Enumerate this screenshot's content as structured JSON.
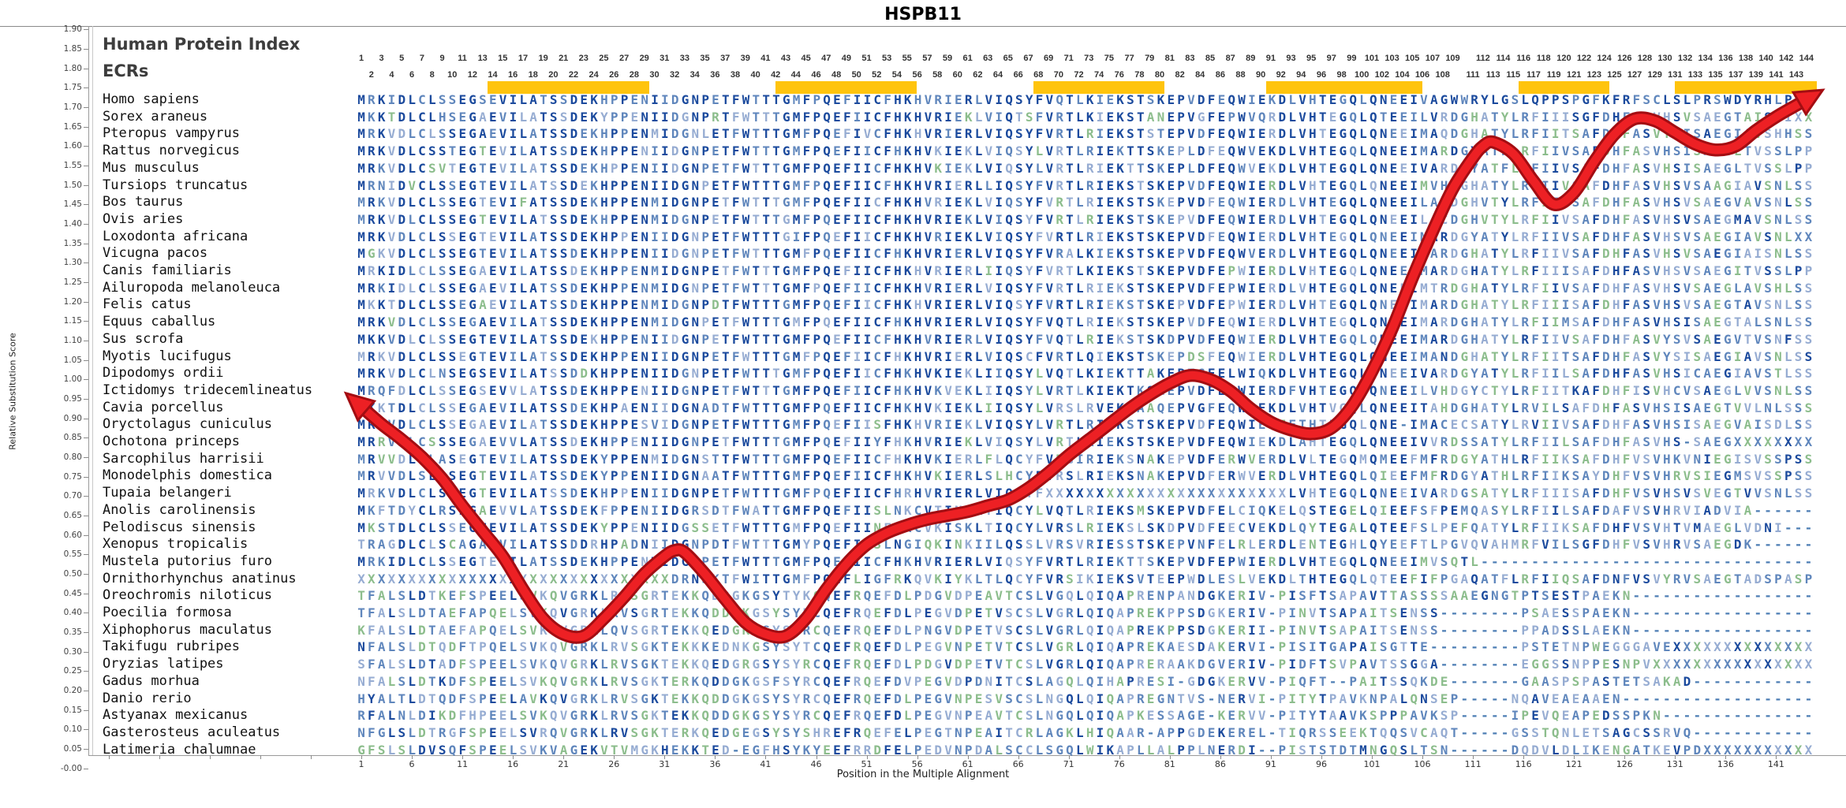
{
  "title": "HSPB11",
  "panel": {
    "index_label": "Human Protein Index",
    "ecrs_label": "ECRs"
  },
  "y_axis": {
    "label": "Relative Substitution Score",
    "min": 0.0,
    "max": 1.9,
    "step": 0.05
  },
  "x_axis": {
    "label": "Position in the Multiple Alignment",
    "tick_start": 1,
    "tick_step": 5,
    "tick_end": 141,
    "positions": 144,
    "number_row_switch": 110
  },
  "colors": {
    "ecr_bar": "#FFC40D",
    "curve_inner": "#ED2024",
    "curve_outer": "#A30D12",
    "residue_dark": "#1B4A9D",
    "residue_medium": "#5F86BC",
    "residue_light": "#96ACD2",
    "residue_green": "#8CBD8C",
    "residue_gap": "#4F7FB5"
  },
  "ecr_regions": [
    {
      "start": 14,
      "end": 29
    },
    {
      "start": 42.5,
      "end": 55.5
    },
    {
      "start": 68,
      "end": 80
    },
    {
      "start": 91,
      "end": 105.5
    },
    {
      "start": 116,
      "end": 124
    },
    {
      "start": 131.5,
      "end": 144.5
    }
  ],
  "species": [
    {
      "name": "Homo sapiens",
      "seq": "MRKIDLCLSSEGSEVILATSSDEKHPPENIIDGNPETFWTTTGMFPQEFIICFHKHVRIERLVIQSYFVQTLKIEKSTSKEPVDFEQWIEKDLVHTEGQLQNEEIVAGWWRYLGSLQPPSPGFKFRFSCLSLPRSWDYRHLPPH"
    },
    {
      "name": "Sorex araneus",
      "seq": "MKKTDLCLHSEGAEVILATSSDEKYPPENIIDGNPRTFWTTTGMFPQEFIICFHKHVRIEKLVIQTSFVRTLKIEKSTANEPVGFEPWVQRDLVHTEGQLQTEEILVRDGHATYLRFIIISGFDHFAAVHSVSAEGTAISNIXX"
    },
    {
      "name": "Pteropus vampyrus",
      "seq": "MRKVDLCLSSEGAEVILATSSDEKHPPENMIDGNLETFWTTTGMFPQEFIVCFHKHVRIERLVIQSYFVRTLRIEKSTSTEPVDFEQWIERDLVHTEGQLQNEEIMAQDGHATYLRFIITSAFDHFASVYSISAEGIAVSHHSS"
    },
    {
      "name": "Rattus norvegicus",
      "seq": "MRKVDLCSSTEGTEVILATSSDEKHPPENIIDGNPETFWTTTGMFPQEFIICFHKHVKIEKLVIQSYLVRTLRIEKTTSKEPLDFEQWVEKDLVHTEGQLQNEEIMARDGYATFLRFIIVSAFDHFASVHSISAEGLTVSSLPP"
    },
    {
      "name": "Mus musculus",
      "seq": "MRKVDLCSVTEGTEVILATSSDEKHPPENIIDGNPETFWTTTGMFPQEFIICFHKHVKIEKLVIQSYLVRTLRIEKTTSKEPLDFEQWVEKDLVHTEGQLQNEEIVARDGYATFLRFIIVSAFDHFASVHSISAEGLTVSSLPP"
    },
    {
      "name": "Tursiops truncatus",
      "seq": "MRNIDVCLSSEGTEVILATSSDEKHPPENIIDGNPETFWTTTGMFPQEFIICFHKHVRIERLLIQSYFVRTLRIEKSTSKEPVDFEQWIERDLVHTEGQLQNEEIMVHDGHATYLRFIIVSAFDHFASVHSVSAAGIAVSNLSS"
    },
    {
      "name": "Bos taurus",
      "seq": "MRKVDLCLSSEGTEVIFATSSDEKHPPENMIDGNPETFWTTTGMFPQEFIICFHKHVRIEKLVIQSYFVRTLRIEKSTSKEPVDFEQWIERDLVHTEGQLQNEEILARDGHVTYLRFIIVSAFDHFASVHSVSAEGVAVSNLSS"
    },
    {
      "name": "Ovis aries",
      "seq": "MRKVDLCLSSEGTEVILATSSDEKHPPENMIDGNPETFWTTTGMFPQEFIICFHKHVRIEKLVIQSYFVRTLRIEKSTSKEPVDFEQWIERDLVHTEGQLQNEEILACDGHVTYLRFIIVSAFDHFASVHSVSAEGMAVSNLSS"
    },
    {
      "name": "Loxodonta africana",
      "seq": "MRKVDLCLSSEGTEVILATSSDEKHPPENIIDGNPETFWTTTGIFPQEFIICFHKHVRIEKLVIQSYFVRTLRIEKSTSKEPVDFEQWIERDLVHTEGQLQNEEIMARDGYATYLRFIIVSAFDHFASVHSVSAEGIAVSNLXX"
    },
    {
      "name": "Vicugna pacos",
      "seq": "MGKVDLCLSSEGTEVILATSSDEKHPPENIIDGNPETFWTTTGMFPQEFIICFHKHVRIERLVIQSYFVRALKIEKSTSKEPVDFEQWVERDLVHTEGQLQNEEIVARDGHATYLRFIIVSAFDHFASVHSVSAEGIAISNLSS"
    },
    {
      "name": "Canis familiaris",
      "seq": "MRKIDLCLSSEGAEVILATSSDEKHPPENMIDGNPETFWTTTGMFPQEFIICFHKHVRIERLIIQSYFVRTLKIEKSTSKEPVDFEPWIERDLVHTEGQLQNEEIMARDGHATYLRFIIISAFDHFASVHSVSAEGITVSSLPP"
    },
    {
      "name": "Ailuropoda melanoleuca",
      "seq": "MRKIDLCLSSEGAEVILATSSDEKHPPENMIDGNPETFWTTTGMFPQEFIICFHKHVRIERLVIQSYFVRTLRIEKSTSKEPVDFEPWIERDLVHTEGQLQNEEIMTRDGHATYLRFIIVSAFDHFASVHSVSAEGLAVSHLSS"
    },
    {
      "name": "Felis catus",
      "seq": "MKKTDLCLSSEGAEVILATSSDEKHPPENMIDGNPDTFWTTTGMFPQEFIICFHKHVRIERLVIQSYFVRTLRIEKSTSKEPVDFEPWIERDLVHTEGQLQNEEIMARDGHATYLRFIIISAFDHFASVHSVSAEGTAVSNLSS"
    },
    {
      "name": "Equus caballus",
      "seq": "MRKVDLCLSSEGAEVILATSSDEKHPPENMIDGNPETFWTTTGMFPQEFIICFHKHVRIERLVIQSYFVQTLRIEKSTSKEPVDFEQWIERDLVHTEGQLQNEEIMARDGHATYLRFIIMSAFDHFASVHSISAEGTALSNLSS"
    },
    {
      "name": "Sus scrofa",
      "seq": "MKKVDLCLSSEGTEVILATSSDEKHPPENIIDGNPETFWTTTGMFPQEFIICFHKHVRIERLVIQSYFVQTLRIEKSTSKDPVDFEQWIERDLVHTEGQLQNEEIMARDGHATYLRFIIVSAFDHFASVYSVSAEGVTVSNFSS"
    },
    {
      "name": "Myotis lucifugus",
      "seq": "MRKVDLCLSSEGTEVILATSSDEKHPPENIIDGNPETFWTTTGMFPQEFIICFHKHVRIERLVIQSCFVRTLQIEKSTSKEPDSFEQWIERDLVHTEGQLQNEEIMANDGHATYLRFIITSAFDHFASVYSISAEGIAVSNLSS"
    },
    {
      "name": "Dipodomys ordii",
      "seq": "MRKVDLCLNSEGSEVILATSSDDKHPPENIIDGNPETFWTTTGMFPQEFIICFHKHVKIEKLIIQSYLVQTLKIEKTTAKEPTGFELWIQKDLVHTEGQLQNEEIVARDGYATYLRFIILSAFDHFASVHSICAEGIAVSTLSS"
    },
    {
      "name": "Ictidomys tridecemlineatus",
      "seq": "MRQFDLCLSSEGSEVVLATSSDEKHPPENIIDGNPETFWTTTGMFPQEFIICFHKHVKVEKLIIQSYLVRTLKIEKTKSKEPVDFERWIERDFVHTEGQLQNEEILVHDGYCTYLRFIITKAFDHFISVHCVSAEGLVVSNLSS"
    },
    {
      "name": "Cavia porcellus",
      "seq": "MKKTDLCLSSEGAEVILATSSDEKHPAENIIDGNADTFWTTTGMFPQEFIICFHKHVKIEKLIIQSYLVRSLRVEKSAAQEPVGFEQWIEKDLVHTVGQLQNEEITAHDGHATYLRVILSAFDHFASVHSISAEGTVVLNLSSS"
    },
    {
      "name": "Oryctolagus cuniculus",
      "seq": "MRKVDLCLSSEGAEVILATSSDEKHPPESVIDGNPETFWTTTGMFPQEFIISFHKHVRIEKLVIQSYLVRTLRIEKSTSKEPVDFEQWIEREFTHTEGQLQNE-IMACECSATYLRVIIVSAFDHFASVHSISAEGVAISDLSS"
    },
    {
      "name": "Ochotona princeps",
      "seq": "MRRVDLCSSSEGAEVVLATSSDEKHPPENIIDGNPETFWTTTGMFPQEFIIYFHKHVRIEKLVIQSYLVRTLRIEKSTSKEPVDFEQWIEKDLAHTEGQLQNEEIVVRDSSATYLRFIILSAFDHFASVHS-SAEGXXXXXXXX"
    },
    {
      "name": "Sarcophilus harrisii",
      "seq": "MRVVDLCLASEGTEVILATSSDEKYPPENMIDGNSTTFWTTTGMFPQEFIICFHKHVKIERLFLQCYFVRGIRIEKSNAKEPVDFERWVERDLVLTEGQMQMEEFMFRDGYATHLRFIIKSAFDHFVSVHKVNIEGISVSSPSS"
    },
    {
      "name": "Monodelphis domestica",
      "seq": "MRVVDLSLSSEGTEVILATSSDEKYPPENIIDGNAATFWTTTGMFPQEFIICFHKHVKIERLSLHCYFVRSLRIEKSNAKEPVDFERWVERDLVHTEGQLQIEEFMFRDGYATHLRFIIKSAYDHFVSVHRVSIEGMSVSSPSS"
    },
    {
      "name": "Tupaia belangeri",
      "seq": "MRKVDLCLSSEGTEVILATSSDEKHPPENIIDGNPETFWTTTGMFPQEFIICFHRHVRIERLVIQSYFXXXXXXXXXXXXXXXXXXXXXXXXLVHTEGQLQNEEIVARDGSATYLRFIIISAFDHFVSVHSVSVEGTVVSNLSS"
    },
    {
      "name": "Anolis carolinensis",
      "seq": "MKFTDYCLRSEGAEVVLATSSDEKFPPENIIDGRSDTFWATTGMFPQEFIISLNKCVTINKLTIQCYLVQTLRIEKSMSKEPVDFELCIQKELQSTEGELQIEEFSFPEMQASYLRFIILSAFDAFVSVHRVIADVIA------"
    },
    {
      "name": "Pelodiscus sinensis",
      "seq": "MKSTDLCLSSEGTEVILATSSDEKYPPENIIDGSSETFWTTTGMFPQEFIINFHKCVKISKLTIQCYLVRSLRIEKSLSKDPVDFEECVEKDLQYTEGALQTEEFSLPEFQATYLRFIIKSAFDHFVSVHTVMAEGLVDNI---"
    },
    {
      "name": "Xenopus tropicalis",
      "seq": "TRAGDLCLSCAGARVILATSSDDRHPADNIIDGNPDTFWTTTGMYPQEFIISLNGIQKINKIILQSSLVRSVRIESSTSKEPVNFELRLERDLENTEGHLQYEEFTLPGVQVAHMRFVILSGFDHFVSVHRVSAEGDK------"
    },
    {
      "name": "Mustela putorius furo",
      "seq": "MRKIDLCLSSEGTEVILATSSDEKHPPENMIDGNPETFWTTTGMFPQEFIICFHKHVRIERLVIQSYFVRTLRIEKTTSKEPVDFEPWIERDLVHTEGQLQNEEIMVSQTL---------------------------------"
    },
    {
      "name": "Ornithorhynchus anatinus",
      "seq": "XXXXXXXXXXXXXXXXXXXXXXXXXXXXXXXDRNSKTFWITTGMFPQEFLIGFRKQVKIYKLTLQCYFVRSIKIEKSVTEEPWDLESLVEKDLTHTEGQLQTEEFIFPGAQATFLRFIIQSAFDNFVSVYRVSAEGTADSPASP"
    },
    {
      "name": "Oreochromis niloticus",
      "seq": "TFALSLDTKEFSPEELSVKQVGRKLRVSGRTEKKQDDGKGSYTYKCQEFRQEFDLPDGVDPEAVTCSLVGQLQIQAPRENPANDGKERIV-PISFTSAPAVTTASSSSAAEGNGTPTSESTPAEKN------------------"
    },
    {
      "name": "Poecilia formosa",
      "seq": "TFALSLDTAEFAPQELSVKQVGRKLRVSGRTEKKQDDGKGSYSYRCQEFRQEFDLPEGVDPETVSCSLVGRLQIQAPREKPPSDGKERIV-PINVTSAPAITSENSS--------PSAESSPAEKN------------------"
    },
    {
      "name": "Xiphophorus maculatus",
      "seq": "KFALSLDTAEFAPQELSVKQVGRKLQVSGRTEKKQEDGKGSYSYRCQEFRQEFDLPNGVDPETVSCSLVGRLQIQAPREKPPSDGKERII-PINVTSAPAITSENSS--------PPADSSLAEKN------------------"
    },
    {
      "name": "Takifugu rubripes",
      "seq": "NFALSLDTQDFTPQELSVKQVGRKLRVSGKTEKKKEDNKGSYSYTCQEFRQEFDLPEGVNPETVTCSLVGRLQIQAPREKAESDAKERVI-PISITGAPAISGTTE---------PSTETNPWEGGGAVEXXXXXXXXXXXXXX"
    },
    {
      "name": "Oryzias latipes",
      "seq": "SFALSLDTADFSPEELSVKQVGRKLRVSGKTEKKQEDGRGSYSYRCQEFRQEFDLPDGVDPETVTCSLVGRLQIQAPRERAAKDGVERIV-PIDFTSVPAVTSSGGA--------EGGSSNPPESNPVXXXXXXXXXXXXXXXX"
    },
    {
      "name": "Gadus morhua",
      "seq": "NFALSLDTKDFSPEELSVKQVGRKLRVSGKTERKQDDGKGSFSYRCQEFRQEFDVPEGVDPDNITCSLAGQLQIHAPRESI-GDGKERVV-PIQFT--PAITSSQKDE-------GAASPSPASTETSAKAD------------"
    },
    {
      "name": "Danio rerio",
      "seq": "HYALTLDTQDFSPEELAVKQVGRKLRVSGKTEKKQDDGKGSYSYRCQEFRQEFDLPEGVNPESVSCSLNGQLQIQAPREGNTVS-NERVI-PITYTPAVKNPALQNSEP-----NQAVEAEAAEN-------------------"
    },
    {
      "name": "Astyanax mexicanus",
      "seq": "RFALNLDIKDFHPEELSVKQVGRKLRVSGKTEKKQDDGKGSYSYRCQEFRQEFDLPEGVNPEAVTCSLNGQLQIQAPKESSAGE-KERVV-PITYTAAVKSPPPAVKSP-----IPEVQEAPEDSSPKN---------------"
    },
    {
      "name": "Gasterosteus aculeatus",
      "seq": "NFGLSLDTRGFSPEELSVRQVGRKLRVSGKTERKQEDGEGSYSYSHREFRQEFELPEGTNPEAITCRLAGKLHIQAAR-APPGDEKEREL-TIQRSSEEKTQQSVCAQT-----GSSTQNLETSAGCSSRVQ------------"
    },
    {
      "name": "Latimeria chalumnae",
      "seq": "GFSLSLDVSQFSPEELSVKVAGEKVTVMGKHEKKTED-EGFHSYKYEEFRRDFELPEDVNPDALSCCLSGQLWIKAPLLALPPLNERDI--PISTSTDTMNGQSLTSN------DQDVLDLIKENGATKEVPDXXXXXXXXXXX"
    }
  ],
  "chart_data": {
    "type": "line",
    "title": "HSPB11",
    "xlabel": "Position in the Multiple Alignment",
    "ylabel": "Relative Substitution Score",
    "xlim": [
      1,
      144
    ],
    "ylim": [
      0.0,
      1.9
    ],
    "y_tick_step": 0.05,
    "x_ticks": [
      1,
      6,
      11,
      16,
      21,
      26,
      31,
      36,
      41,
      46,
      51,
      56,
      61,
      66,
      71,
      76,
      81,
      86,
      91,
      96,
      101,
      106,
      111,
      116,
      121,
      126,
      131,
      136,
      141
    ],
    "legend": "none",
    "grid": false,
    "series": [
      {
        "name": "Relative Substitution Score",
        "points": [
          [
            1,
            0.93
          ],
          [
            3,
            0.885
          ],
          [
            5,
            0.845
          ],
          [
            7,
            0.8
          ],
          [
            9,
            0.745
          ],
          [
            11,
            0.675
          ],
          [
            13,
            0.61
          ],
          [
            15,
            0.545
          ],
          [
            17,
            0.46
          ],
          [
            19,
            0.385
          ],
          [
            21,
            0.345
          ],
          [
            23,
            0.34
          ],
          [
            25,
            0.385
          ],
          [
            27,
            0.44
          ],
          [
            29,
            0.5
          ],
          [
            31,
            0.545
          ],
          [
            32,
            0.56
          ],
          [
            33,
            0.555
          ],
          [
            35,
            0.5
          ],
          [
            37,
            0.435
          ],
          [
            39,
            0.375
          ],
          [
            41,
            0.345
          ],
          [
            43,
            0.34
          ],
          [
            45,
            0.385
          ],
          [
            47,
            0.46
          ],
          [
            49,
            0.525
          ],
          [
            51,
            0.575
          ],
          [
            53,
            0.605
          ],
          [
            55,
            0.625
          ],
          [
            57,
            0.64
          ],
          [
            59,
            0.65
          ],
          [
            61,
            0.66
          ],
          [
            63,
            0.675
          ],
          [
            65,
            0.69
          ],
          [
            67,
            0.72
          ],
          [
            69,
            0.76
          ],
          [
            71,
            0.805
          ],
          [
            73,
            0.845
          ],
          [
            75,
            0.885
          ],
          [
            77,
            0.925
          ],
          [
            79,
            0.96
          ],
          [
            81,
            0.99
          ],
          [
            83,
            1.01
          ],
          [
            85,
            1.0
          ],
          [
            87,
            0.97
          ],
          [
            89,
            0.925
          ],
          [
            91,
            0.89
          ],
          [
            93,
            0.87
          ],
          [
            95,
            0.86
          ],
          [
            97,
            0.875
          ],
          [
            99,
            0.93
          ],
          [
            101,
            1.02
          ],
          [
            103,
            1.13
          ],
          [
            105,
            1.26
          ],
          [
            107,
            1.38
          ],
          [
            109,
            1.49
          ],
          [
            111,
            1.57
          ],
          [
            112,
            1.6
          ],
          [
            113,
            1.61
          ],
          [
            115,
            1.58
          ],
          [
            117,
            1.51
          ],
          [
            119,
            1.45
          ],
          [
            121,
            1.48
          ],
          [
            123,
            1.56
          ],
          [
            125,
            1.63
          ],
          [
            127,
            1.67
          ],
          [
            129,
            1.665
          ],
          [
            131,
            1.635
          ],
          [
            133,
            1.605
          ],
          [
            135,
            1.59
          ],
          [
            137,
            1.6
          ],
          [
            139,
            1.64
          ],
          [
            141,
            1.675
          ],
          [
            143,
            1.705
          ],
          [
            144,
            1.72
          ]
        ]
      }
    ],
    "ecr_regions": [
      [
        14,
        29
      ],
      [
        42.5,
        55.5
      ],
      [
        68,
        80
      ],
      [
        91,
        105.5
      ],
      [
        116,
        124
      ],
      [
        131.5,
        144.5
      ]
    ]
  }
}
